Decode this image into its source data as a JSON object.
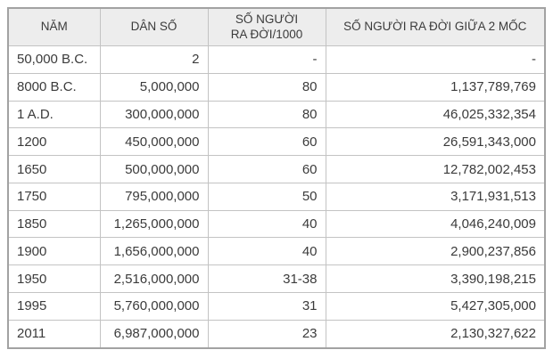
{
  "colors": {
    "page_background": "#ffffff",
    "header_background": "#ededed",
    "border_outer": "#a2a2a2",
    "border_inner": "#c3c3c3",
    "text": "#3b3b3b"
  },
  "chart_data": {
    "type": "table",
    "title": "",
    "columns": [
      "NĂM",
      "DÂN SỐ",
      "SỐ NGƯỜI\nRA ĐỜI/1000",
      "SỐ NGƯỜI RA ĐỜI GIỮA 2 MỐC"
    ],
    "rows": [
      [
        "50,000 B.C.",
        "2",
        "-",
        "-"
      ],
      [
        "8000 B.C.",
        "5,000,000",
        "80",
        "1,137,789,769"
      ],
      [
        "1 A.D.",
        "300,000,000",
        "80",
        "46,025,332,354"
      ],
      [
        "1200",
        "450,000,000",
        "60",
        "26,591,343,000"
      ],
      [
        "1650",
        "500,000,000",
        "60",
        "12,782,002,453"
      ],
      [
        "1750",
        "795,000,000",
        "50",
        "3,171,931,513"
      ],
      [
        "1850",
        "1,265,000,000",
        "40",
        "4,046,240,009"
      ],
      [
        "1900",
        "1,656,000,000",
        "40",
        "2,900,237,856"
      ],
      [
        "1950",
        "2,516,000,000",
        "31-38",
        "3,390,198,215"
      ],
      [
        "1995",
        "5,760,000,000",
        "31",
        "5,427,305,000"
      ],
      [
        "2011",
        "6,987,000,000",
        "23",
        "2,130,327,622"
      ]
    ],
    "column_alignment": [
      "left",
      "right",
      "right",
      "right"
    ],
    "header_row": true,
    "grid": true
  }
}
